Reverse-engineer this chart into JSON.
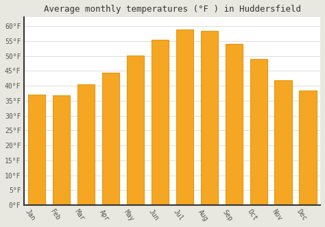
{
  "title": "Average monthly temperatures (°F ) in Huddersfield",
  "months": [
    "Jan",
    "Feb",
    "Mar",
    "Apr",
    "May",
    "Jun",
    "Jul",
    "Aug",
    "Sep",
    "Oct",
    "Nov",
    "Dec"
  ],
  "values": [
    37.0,
    36.8,
    40.5,
    44.5,
    50.2,
    55.5,
    59.0,
    58.5,
    54.0,
    49.0,
    42.0,
    38.5
  ],
  "bar_color": "#F5A623",
  "bar_edge_color": "#E8960F",
  "background_color": "#e8e8e0",
  "plot_bg_color": "#ffffff",
  "grid_color": "#d0d0d0",
  "spine_color": "#333333",
  "ylim": [
    0,
    63
  ],
  "yticks": [
    0,
    5,
    10,
    15,
    20,
    25,
    30,
    35,
    40,
    45,
    50,
    55,
    60
  ],
  "title_fontsize": 9,
  "tick_fontsize": 7,
  "title_color": "#333333",
  "tick_color": "#555555",
  "xlabel_rotation": -55
}
